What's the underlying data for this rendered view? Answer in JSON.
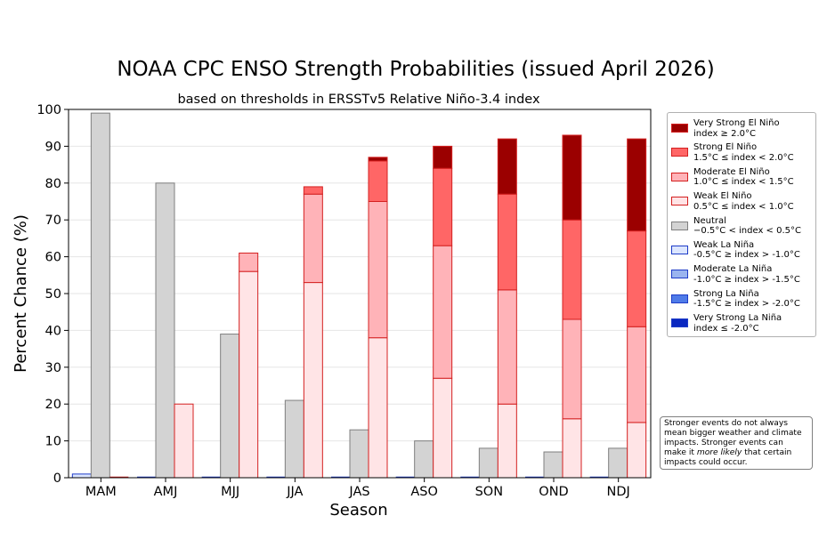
{
  "chart_data": {
    "type": "bar",
    "title": "NOAA CPC ENSO Strength Probabilities (issued April 2026)",
    "subtitle": "based on thresholds in ERSSTv5 Relative Niño-3.4 index",
    "xlabel": "Season",
    "ylabel": "Percent Chance (%)",
    "ylim": [
      0,
      100
    ],
    "yticks": [
      0,
      10,
      20,
      30,
      40,
      50,
      60,
      70,
      80,
      90,
      100
    ],
    "grid": "horizontal",
    "legend_position": "right",
    "categories": [
      "MAM",
      "AMJ",
      "MJJ",
      "JJA",
      "JAS",
      "ASO",
      "SON",
      "OND",
      "NDJ"
    ],
    "series": [
      {
        "name": "Very Strong El Niño",
        "range": "index ≥ 2.0°C",
        "group": "el_nino",
        "color": "#9b0000",
        "edge": "#d42020",
        "values": [
          0,
          0,
          0,
          0,
          1,
          6,
          15,
          23,
          25
        ]
      },
      {
        "name": "Strong El Niño",
        "range": "1.5°C ≤ index < 2.0°C",
        "group": "el_nino",
        "color": "#ff6666",
        "edge": "#d42020",
        "values": [
          0,
          0,
          0,
          2,
          11,
          21,
          26,
          27,
          26
        ]
      },
      {
        "name": "Moderate El Niño",
        "range": "1.0°C ≤ index < 1.5°C",
        "group": "el_nino",
        "color": "#ffb3b8",
        "edge": "#d42020",
        "values": [
          0,
          0,
          5,
          24,
          37,
          36,
          31,
          27,
          26
        ]
      },
      {
        "name": "Weak El Niño",
        "range": "0.5°C ≤ index < 1.0°C",
        "group": "el_nino",
        "color": "#ffe4e6",
        "edge": "#d42020",
        "values": [
          0,
          20,
          56,
          53,
          38,
          27,
          20,
          16,
          15
        ]
      },
      {
        "name": "Neutral",
        "range": "−0.5°C < index < 0.5°C",
        "group": "neutral",
        "color": "#d3d3d3",
        "edge": "#7f7f7f",
        "values": [
          99,
          80,
          39,
          21,
          13,
          10,
          8,
          7,
          8
        ]
      },
      {
        "name": "Weak La Niña",
        "range": "-0.5°C ≥ index > -1.0°C",
        "group": "la_nina",
        "color": "#dce6ff",
        "edge": "#1e3cc8",
        "values": [
          1,
          0,
          0,
          0,
          0,
          0,
          0,
          0,
          0
        ]
      },
      {
        "name": "Moderate La Niña",
        "range": "-1.0°C ≥ index > -1.5°C",
        "group": "la_nina",
        "color": "#9ab4ef",
        "edge": "#1e3cc8",
        "values": [
          0,
          0,
          0,
          0,
          0,
          0,
          0,
          0,
          0
        ]
      },
      {
        "name": "Strong La Niña",
        "range": "-1.5°C ≥ index > -2.0°C",
        "group": "la_nina",
        "color": "#4f7be8",
        "edge": "#1e3cc8",
        "values": [
          0,
          0,
          0,
          0,
          0,
          0,
          0,
          0,
          0
        ]
      },
      {
        "name": "Very Strong La Niña",
        "range": "index ≤ -2.0°C",
        "group": "la_nina",
        "color": "#0a28c0",
        "edge": "#1e3cc8",
        "values": [
          0,
          0,
          0,
          0,
          0,
          0,
          0,
          0,
          0
        ]
      }
    ],
    "annotation": {
      "line1": "Stronger events do not always",
      "line2": "mean bigger weather and climate",
      "line3": "impacts. Stronger events can",
      "line4_pre": "make it ",
      "line4_em": "more likely",
      "line4_post": " that certain",
      "line5": "impacts could occur."
    }
  }
}
